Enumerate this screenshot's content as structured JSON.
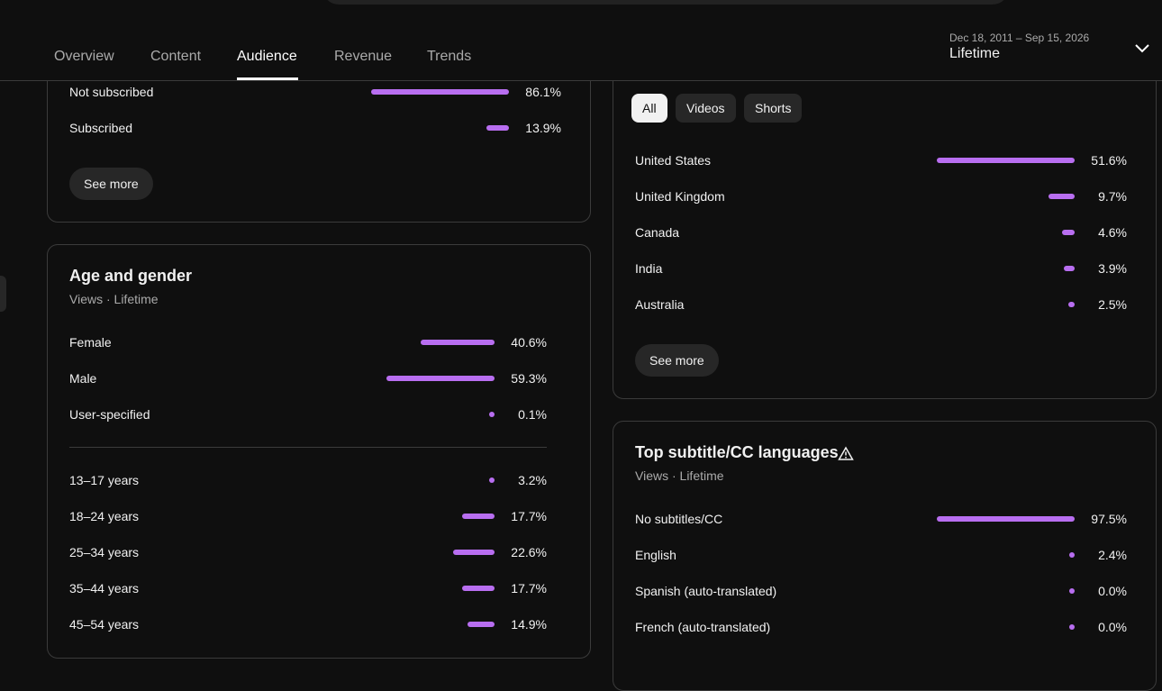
{
  "tabs": [
    "Overview",
    "Content",
    "Audience",
    "Revenue",
    "Trends"
  ],
  "date_range": {
    "range": "Dec 18, 2011 – Sep 15, 2026",
    "label": "Lifetime"
  },
  "subscription": {
    "rows": [
      {
        "name": "Not subscribed",
        "value": 86.1,
        "value_label": "86.1%"
      },
      {
        "name": "Subscribed",
        "value": 13.9,
        "value_label": "13.9%"
      }
    ],
    "button": "See more"
  },
  "age_gender": {
    "title": "Age and gender",
    "subtitle": "Views · Lifetime",
    "gender": [
      {
        "name": "Female",
        "value": 40.6,
        "value_label": "40.6%"
      },
      {
        "name": "Male",
        "value": 59.3,
        "value_label": "59.3%"
      },
      {
        "name": "User-specified",
        "value": 0.1,
        "value_label": "0.1%"
      }
    ],
    "age": [
      {
        "name": "13–17 years",
        "value": 3.2,
        "value_label": "3.2%"
      },
      {
        "name": "18–24 years",
        "value": 17.7,
        "value_label": "17.7%"
      },
      {
        "name": "25–34 years",
        "value": 22.6,
        "value_label": "22.6%"
      },
      {
        "name": "35–44 years",
        "value": 17.7,
        "value_label": "17.7%"
      },
      {
        "name": "45–54 years",
        "value": 14.9,
        "value_label": "14.9%"
      }
    ]
  },
  "geography": {
    "filters": [
      "All",
      "Videos",
      "Shorts"
    ],
    "rows": [
      {
        "name": "United States",
        "value": 51.6,
        "value_label": "51.6%"
      },
      {
        "name": "United Kingdom",
        "value": 9.7,
        "value_label": "9.7%"
      },
      {
        "name": "Canada",
        "value": 4.6,
        "value_label": "4.6%"
      },
      {
        "name": "India",
        "value": 3.9,
        "value_label": "3.9%"
      },
      {
        "name": "Australia",
        "value": 2.5,
        "value_label": "2.5%"
      }
    ],
    "button": "See more"
  },
  "subtitles": {
    "title": "Top subtitle/CC languages",
    "subtitle": "Views · Lifetime",
    "rows": [
      {
        "name": "No subtitles/CC",
        "value": 97.5,
        "value_label": "97.5%"
      },
      {
        "name": "English",
        "value": 2.4,
        "value_label": "2.4%"
      },
      {
        "name": "Spanish (auto-translated)",
        "value": 0.0,
        "value_label": "0.0%"
      },
      {
        "name": "French (auto-translated)",
        "value": 0.0,
        "value_label": "0.0%"
      }
    ]
  }
}
